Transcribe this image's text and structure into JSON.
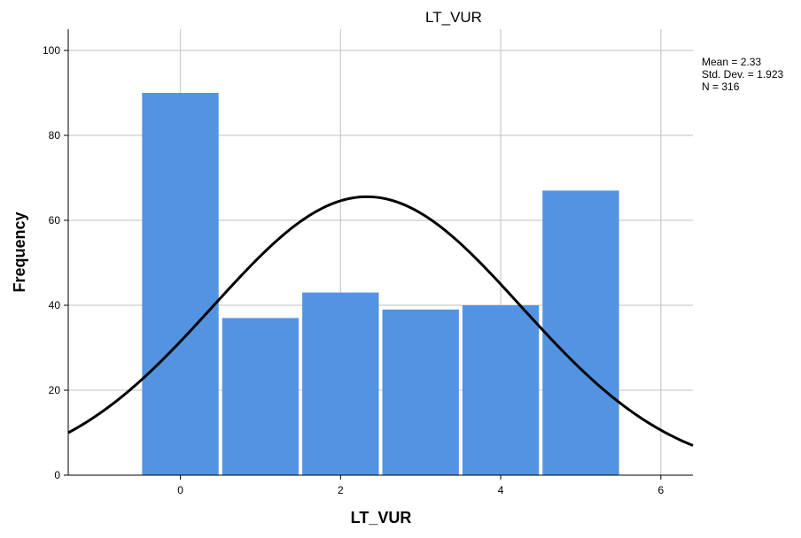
{
  "chart_data": {
    "type": "bar",
    "title": "LT_VUR",
    "xlabel": "LT_VUR",
    "ylabel": "Frequency",
    "xlim": [
      -1.4,
      6.4
    ],
    "ylim": [
      0,
      105
    ],
    "x_ticks": [
      0,
      2,
      4,
      6
    ],
    "y_ticks": [
      0,
      20,
      40,
      60,
      80,
      100
    ],
    "grid": true,
    "bins": [
      {
        "x": 0,
        "value": 90
      },
      {
        "x": 1,
        "value": 37
      },
      {
        "x": 2,
        "value": 43
      },
      {
        "x": 3,
        "value": 39
      },
      {
        "x": 4,
        "value": 40
      },
      {
        "x": 5,
        "value": 67
      }
    ],
    "normal_curve": {
      "mean": 2.33,
      "std": 1.923,
      "n": 316,
      "bin_width": 1
    },
    "stats": [
      "Mean = 2.33",
      "Std. Dev. = 1.923",
      "N = 316"
    ],
    "colors": {
      "bar": "#5294e2",
      "curve": "#000000",
      "grid": "#cccccc",
      "axis": "#000000"
    }
  }
}
